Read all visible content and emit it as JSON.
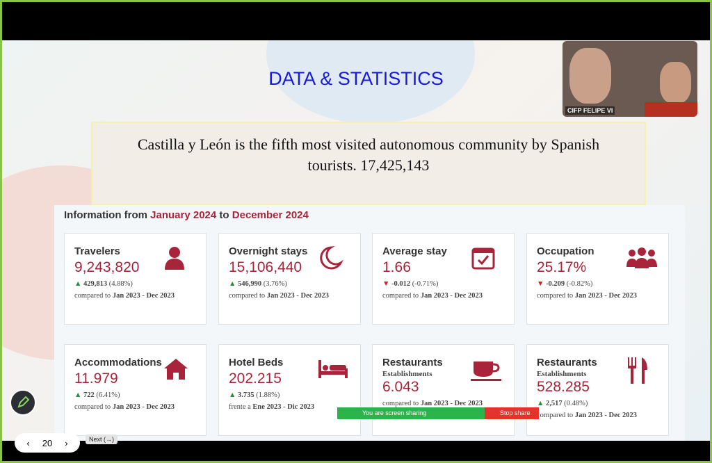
{
  "slide": {
    "title": "DATA & STATISTICS",
    "quote": "Castilla y León is the fifth most visited autonomous community by Spanish tourists. 17,425,143",
    "info": {
      "prefix": "Information from",
      "start": "January 2024",
      "middle": "to",
      "end": "December 2024"
    },
    "cards": [
      {
        "title": "Travelers",
        "value": "9,243,820",
        "trend": "▲",
        "change": "429,813",
        "pct": "(4.88%)",
        "compare": "compared to",
        "period": "Jan 2023 - Dec 2023"
      },
      {
        "title": "Overnight stays",
        "value": "15,106,440",
        "trend": "▲",
        "change": "546,990",
        "pct": "(3.76%)",
        "compare": "compared to",
        "period": "Jan 2023 - Dec 2023"
      },
      {
        "title": "Average stay",
        "value": "1.66",
        "trend": "▼",
        "change": "-0.012",
        "pct": "(-0.71%)",
        "compare": "compared to",
        "period": "Jan 2023 - Dec 2023"
      },
      {
        "title": "Occupation",
        "value": "25.17%",
        "trend": "▼",
        "change": "-0.209",
        "pct": "(-0.82%)",
        "compare": "compared to",
        "period": "Jan 2023 - Dec 2023"
      },
      {
        "title": "Accommodations",
        "value": "11.979",
        "trend": "▲",
        "change": "722",
        "pct": "(6.41%)",
        "compare": "compared to",
        "period": "Jan 2023 - Dec 2023"
      },
      {
        "title": "Hotel Beds",
        "value": "202.215",
        "trend": "▲",
        "change": "3.735",
        "pct": "(1.88%)",
        "compare": "frente a",
        "period": "Ene 2023 - Dic 2023"
      },
      {
        "title": "Restaurants",
        "subtitle": "Establishments",
        "value": "6.043",
        "compare": "compared to",
        "period": "Jan 2023 - Dec 2023"
      },
      {
        "title": "Restaurants",
        "subtitle": "Establishments",
        "value": "528.285",
        "trend": "▲",
        "change": "2,517",
        "pct": "(0.48%)",
        "compare": "compared to",
        "period": "Jan 2023 - Dec 2023"
      }
    ]
  },
  "video": {
    "label": "CIFP FELIPE VI"
  },
  "share_bar": {
    "status": "You are screen sharing",
    "stop": "Stop share"
  },
  "nav": {
    "page": "20",
    "tooltip": "Next (→)"
  }
}
